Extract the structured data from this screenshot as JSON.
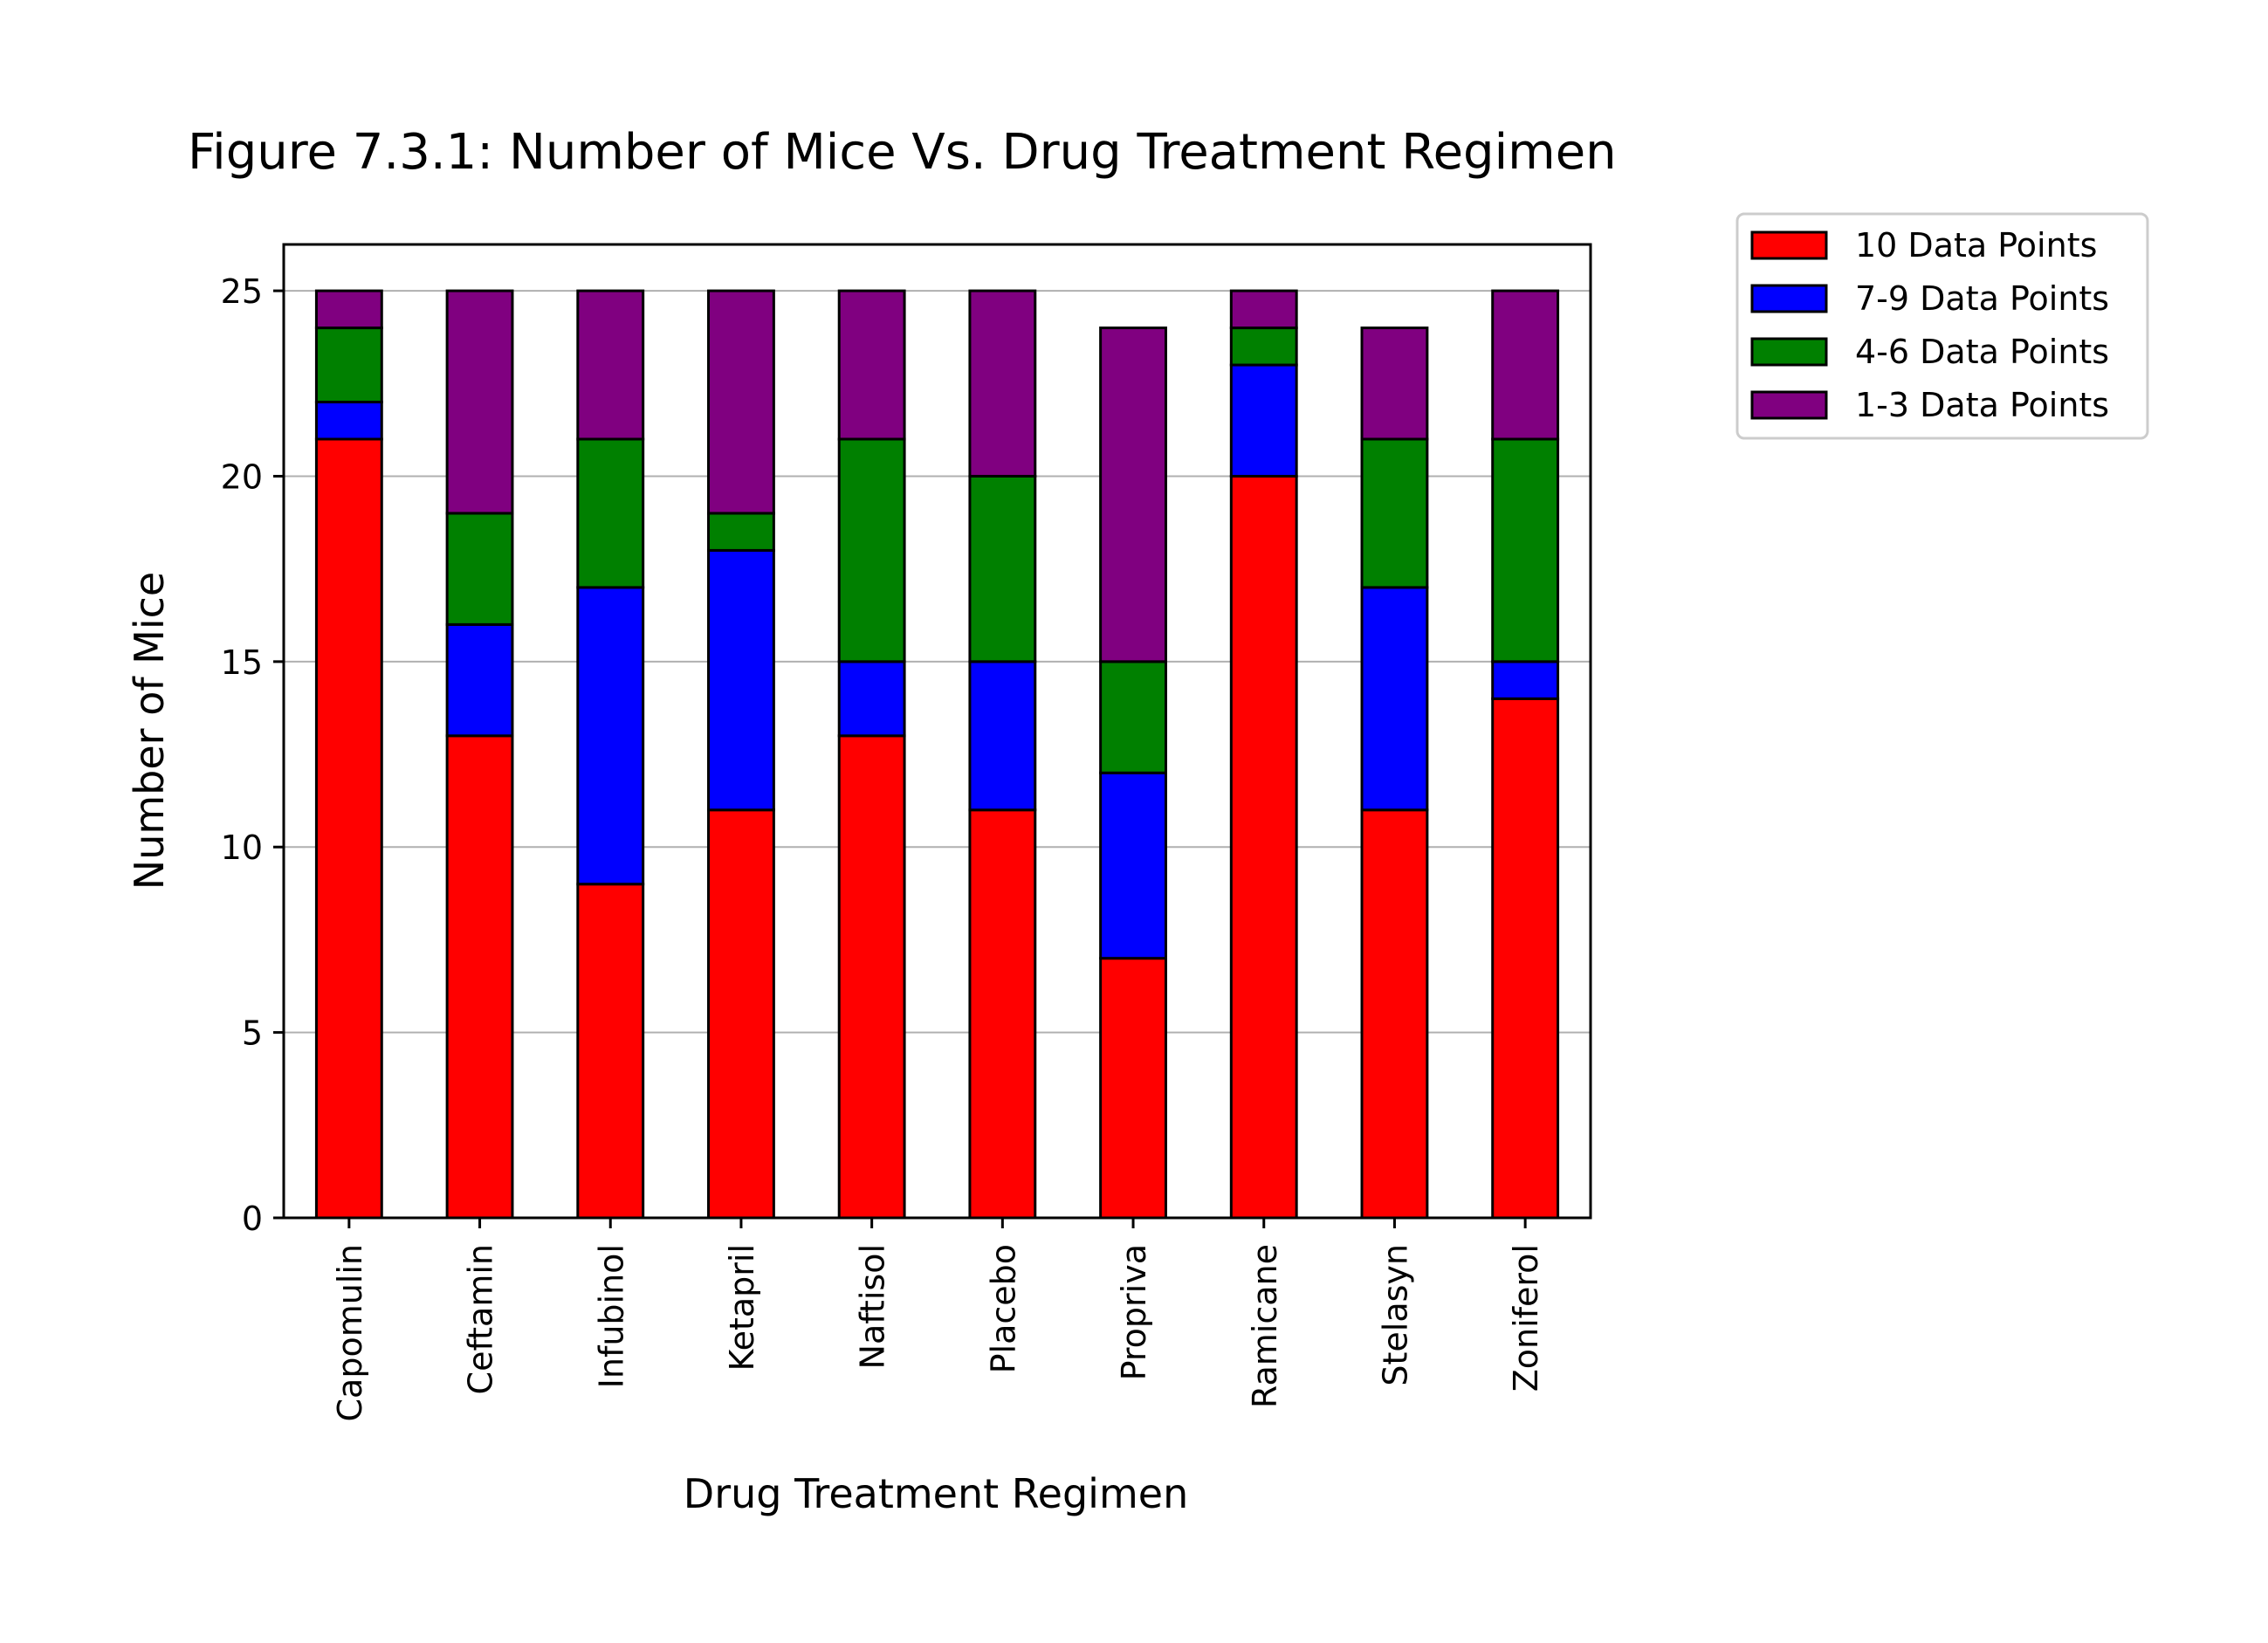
{
  "chart_data": {
    "type": "bar",
    "stacked": true,
    "title": "Figure 7.3.1: Number of Mice Vs. Drug Treatment Regimen",
    "xlabel": "Drug Treatment Regimen",
    "ylabel": "Number of Mice",
    "ylim": [
      0,
      26.25
    ],
    "yticks": [
      "0",
      "5",
      "10",
      "15",
      "20",
      "25"
    ],
    "grid": "horizontal",
    "legend_position": "outside-top-right",
    "categories": [
      "Capomulin",
      "Ceftamin",
      "Infubinol",
      "Ketapril",
      "Naftisol",
      "Placebo",
      "Propriva",
      "Ramicane",
      "Stelasyn",
      "Zoniferol"
    ],
    "series": [
      {
        "name": "10 Data Points",
        "color": "#ff0000",
        "values": [
          21,
          13,
          9,
          11,
          13,
          11,
          7,
          20,
          11,
          14
        ]
      },
      {
        "name": "7-9 Data Points",
        "color": "#0000ff",
        "values": [
          1,
          3,
          8,
          7,
          2,
          4,
          5,
          3,
          6,
          1
        ]
      },
      {
        "name": "4-6 Data Points",
        "color": "#008000",
        "values": [
          2,
          3,
          4,
          1,
          6,
          5,
          3,
          1,
          4,
          6
        ]
      },
      {
        "name": "1-3 Data Points",
        "color": "#800080",
        "values": [
          1,
          6,
          4,
          6,
          4,
          5,
          9,
          1,
          3,
          4
        ]
      }
    ]
  }
}
